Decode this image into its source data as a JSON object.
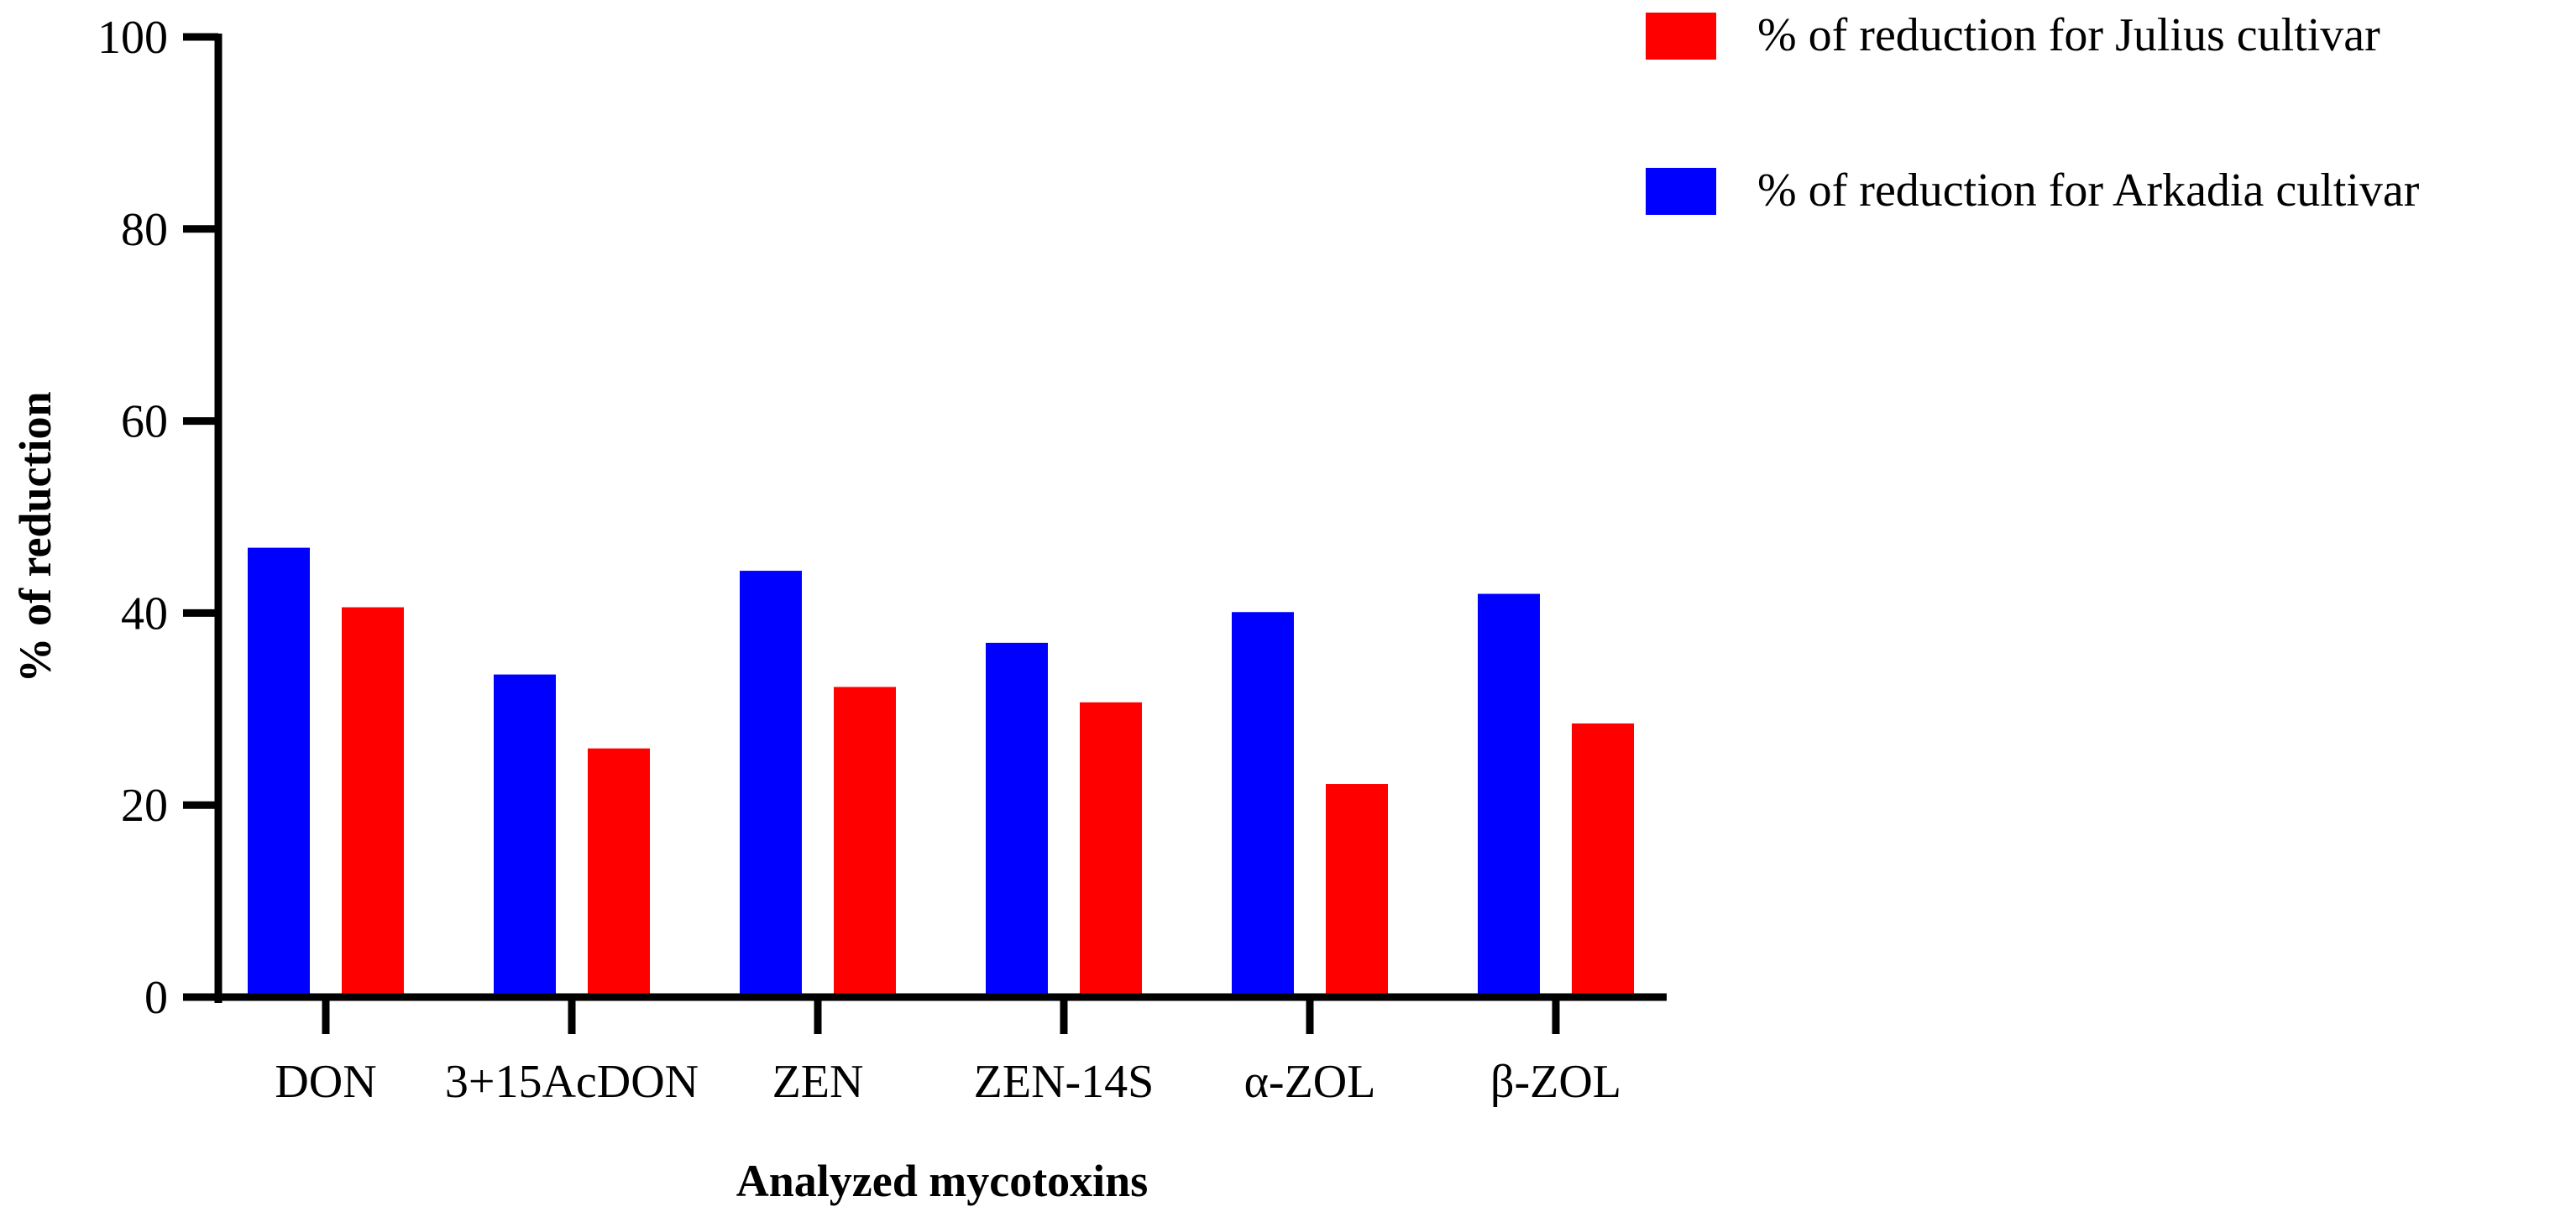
{
  "chart_data": {
    "type": "bar",
    "title": "",
    "xlabel": "Analyzed mycotoxins",
    "ylabel": "% of reduction",
    "ylim": [
      0,
      100
    ],
    "yticks": [
      0,
      20,
      40,
      60,
      80,
      100
    ],
    "categories": [
      "DON",
      "3+15AcDON",
      "ZEN",
      "ZEN-14S",
      "α-ZOL",
      "β-ZOL"
    ],
    "series": [
      {
        "name": "% of reduction for Arkadia cultivar",
        "color": "#0000ff",
        "values": [
          46.8,
          33.6,
          44.4,
          36.9,
          40.1,
          42.0
        ]
      },
      {
        "name": "% of reduction for Julius cultivar",
        "color": "#ff0000",
        "values": [
          40.6,
          25.9,
          32.3,
          30.7,
          22.2,
          28.5
        ]
      }
    ],
    "legend": {
      "placement": "top-right",
      "order": [
        1,
        0
      ]
    },
    "grid": false
  }
}
